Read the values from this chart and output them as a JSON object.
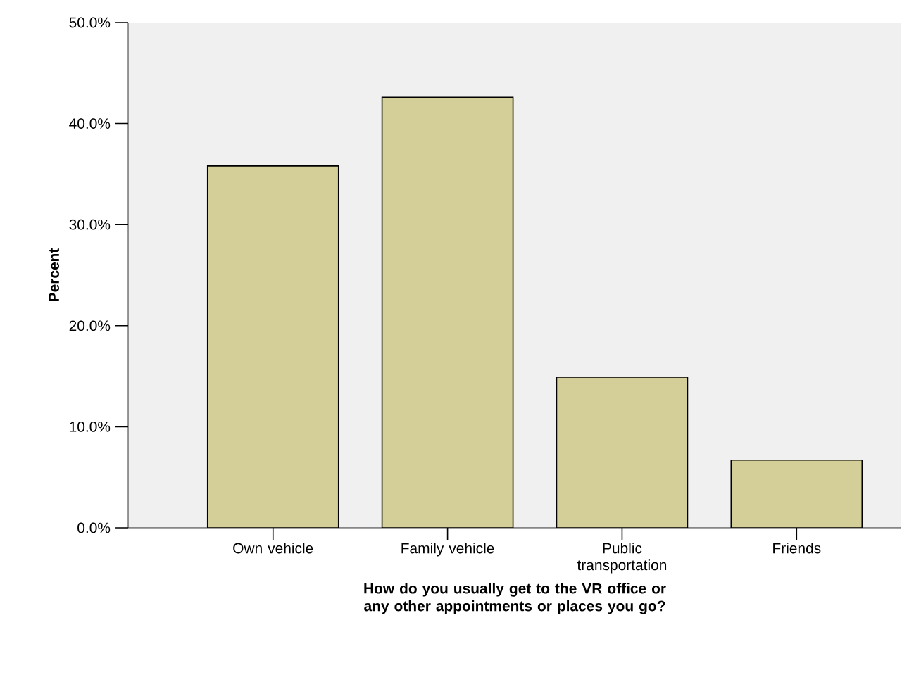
{
  "chart_data": {
    "type": "bar",
    "categories": [
      "Own vehicle",
      "Family vehicle",
      "Public transportation",
      "Friends"
    ],
    "values": [
      35.8,
      42.6,
      14.9,
      6.7
    ],
    "color": "#d4cf98",
    "xlabel": "How do you usually get to the VR office or any other appointments or places you go?",
    "ylabel": "Percent",
    "ylim": [
      0,
      50
    ],
    "yticks": [
      {
        "value": 0,
        "label": "0.0%"
      },
      {
        "value": 10,
        "label": "10.0%"
      },
      {
        "value": 20,
        "label": "20.0%"
      },
      {
        "value": 30,
        "label": "30.0%"
      },
      {
        "value": 40,
        "label": "40.0%"
      },
      {
        "value": 50,
        "label": "50.0%"
      }
    ]
  }
}
